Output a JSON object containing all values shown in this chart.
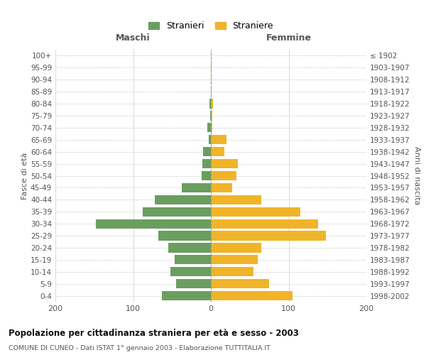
{
  "age_groups": [
    "0-4",
    "5-9",
    "10-14",
    "15-19",
    "20-24",
    "25-29",
    "30-34",
    "35-39",
    "40-44",
    "45-49",
    "50-54",
    "55-59",
    "60-64",
    "65-69",
    "70-74",
    "75-79",
    "80-84",
    "85-89",
    "90-94",
    "95-99",
    "100+"
  ],
  "birth_years": [
    "1998-2002",
    "1993-1997",
    "1988-1992",
    "1983-1987",
    "1978-1982",
    "1973-1977",
    "1968-1972",
    "1963-1967",
    "1958-1962",
    "1953-1957",
    "1948-1952",
    "1943-1947",
    "1938-1942",
    "1933-1937",
    "1928-1932",
    "1923-1927",
    "1918-1922",
    "1913-1917",
    "1908-1912",
    "1903-1907",
    "≤ 1902"
  ],
  "maschi": [
    63,
    45,
    52,
    47,
    55,
    68,
    148,
    88,
    72,
    37,
    12,
    11,
    10,
    3,
    5,
    1,
    2,
    0,
    0,
    0,
    0
  ],
  "femmine": [
    105,
    75,
    55,
    60,
    65,
    148,
    138,
    115,
    65,
    27,
    33,
    35,
    17,
    20,
    2,
    2,
    3,
    1,
    1,
    1,
    0
  ],
  "color_maschi": "#6a9e5f",
  "color_femmine": "#f0b429",
  "title": "Popolazione per cittadinanza straniera per età e sesso - 2003",
  "subtitle": "COMUNE DI CUNEO - Dati ISTAT 1° gennaio 2003 - Elaborazione TUTTITALIA.IT",
  "xlabel_left": "Maschi",
  "xlabel_right": "Femmine",
  "ylabel_left": "Fasce di età",
  "ylabel_right": "Anni di nascita",
  "xlim": 200,
  "legend_maschi": "Stranieri",
  "legend_femmine": "Straniere",
  "bg_color": "#ffffff",
  "grid_color": "#cccccc"
}
